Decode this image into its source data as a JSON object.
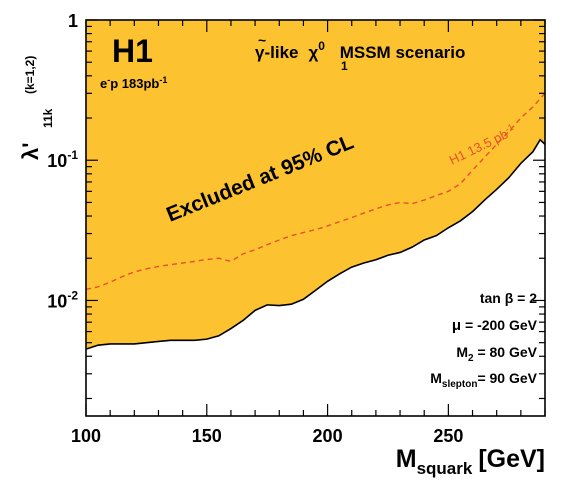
{
  "chart_data": {
    "type": "area",
    "xlabel_main": "M",
    "xlabel_sub": "squark",
    "xlabel_unit": "[GeV]",
    "ylabel_main": "λ'",
    "ylabel_sub": "11k",
    "ylabel_sup": "(k=1,2)",
    "xlim": [
      100,
      290
    ],
    "ylim": [
      0.0015,
      1
    ],
    "yscale": "log",
    "x_ticks": [
      {
        "value": 100,
        "label": "100"
      },
      {
        "value": 150,
        "label": "150"
      },
      {
        "value": 200,
        "label": "200"
      },
      {
        "value": 250,
        "label": "250"
      }
    ],
    "y_ticks": [
      {
        "value": 0.01,
        "base": "10",
        "exp": "-2"
      },
      {
        "value": 0.1,
        "base": "10",
        "exp": "-1"
      },
      {
        "value": 1,
        "base": "1",
        "exp": ""
      }
    ],
    "experiment": "H1",
    "luminosity": {
      "beam": "e",
      "beam_sup": "-",
      "rest": "p 183pb",
      "rest_sup": "-1"
    },
    "scenario": {
      "tilde": "~",
      "gamma": "γ",
      "like": "-like",
      "chi": "χ",
      "chi_sup": "0",
      "chi_sub": "1",
      "rest": "MSSM scenario"
    },
    "excluded_label": "Excluded at 95% CL",
    "params": [
      {
        "main": "tan β = 2",
        "sub": "",
        "rest": ""
      },
      {
        "main": "μ",
        "sub": "",
        "rest": " = -200 GeV"
      },
      {
        "main": "M",
        "sub": "2",
        "rest": " = 80 GeV"
      },
      {
        "main": "M",
        "sub": "slepton",
        "rest": "= 90 GeV"
      }
    ],
    "series": [
      {
        "name": "H1 183pb-1 limit",
        "role": "exclusion boundary",
        "fill_color": "#fdc230",
        "line_color": "#000000",
        "x": [
          100,
          105,
          110,
          115,
          120,
          125,
          130,
          135,
          140,
          145,
          150,
          155,
          160,
          165,
          170,
          175,
          180,
          185,
          190,
          195,
          200,
          205,
          210,
          215,
          220,
          225,
          230,
          235,
          240,
          245,
          250,
          255,
          260,
          265,
          270,
          275,
          280,
          285,
          288,
          290
        ],
        "y": [
          0.0045,
          0.0048,
          0.0049,
          0.0049,
          0.0049,
          0.005,
          0.0051,
          0.0052,
          0.0052,
          0.0052,
          0.0053,
          0.0056,
          0.0063,
          0.0072,
          0.0085,
          0.0093,
          0.0092,
          0.0094,
          0.0102,
          0.0118,
          0.0137,
          0.0155,
          0.0173,
          0.0185,
          0.0195,
          0.021,
          0.022,
          0.024,
          0.027,
          0.029,
          0.033,
          0.037,
          0.043,
          0.052,
          0.062,
          0.075,
          0.095,
          0.115,
          0.14,
          0.13
        ]
      },
      {
        "name": "H1 13.5 pb-1",
        "label_text": "H1 13.5 pb",
        "label_sup": "-1",
        "role": "previous limit",
        "line_color": "#e8502a",
        "dashed": true,
        "x": [
          100,
          105,
          110,
          115,
          120,
          125,
          130,
          135,
          140,
          145,
          150,
          155,
          160,
          165,
          170,
          175,
          180,
          185,
          190,
          195,
          200,
          205,
          210,
          215,
          220,
          225,
          230,
          235,
          240,
          245,
          250,
          255,
          260,
          265,
          270,
          275,
          280,
          285,
          290
        ],
        "y": [
          0.012,
          0.0125,
          0.0135,
          0.0148,
          0.016,
          0.0168,
          0.0175,
          0.018,
          0.0185,
          0.019,
          0.0196,
          0.02,
          0.019,
          0.0215,
          0.023,
          0.025,
          0.027,
          0.029,
          0.0305,
          0.032,
          0.034,
          0.0365,
          0.039,
          0.042,
          0.045,
          0.048,
          0.05,
          0.049,
          0.052,
          0.056,
          0.06,
          0.068,
          0.085,
          0.105,
          0.13,
          0.16,
          0.2,
          0.24,
          0.3
        ]
      }
    ]
  }
}
